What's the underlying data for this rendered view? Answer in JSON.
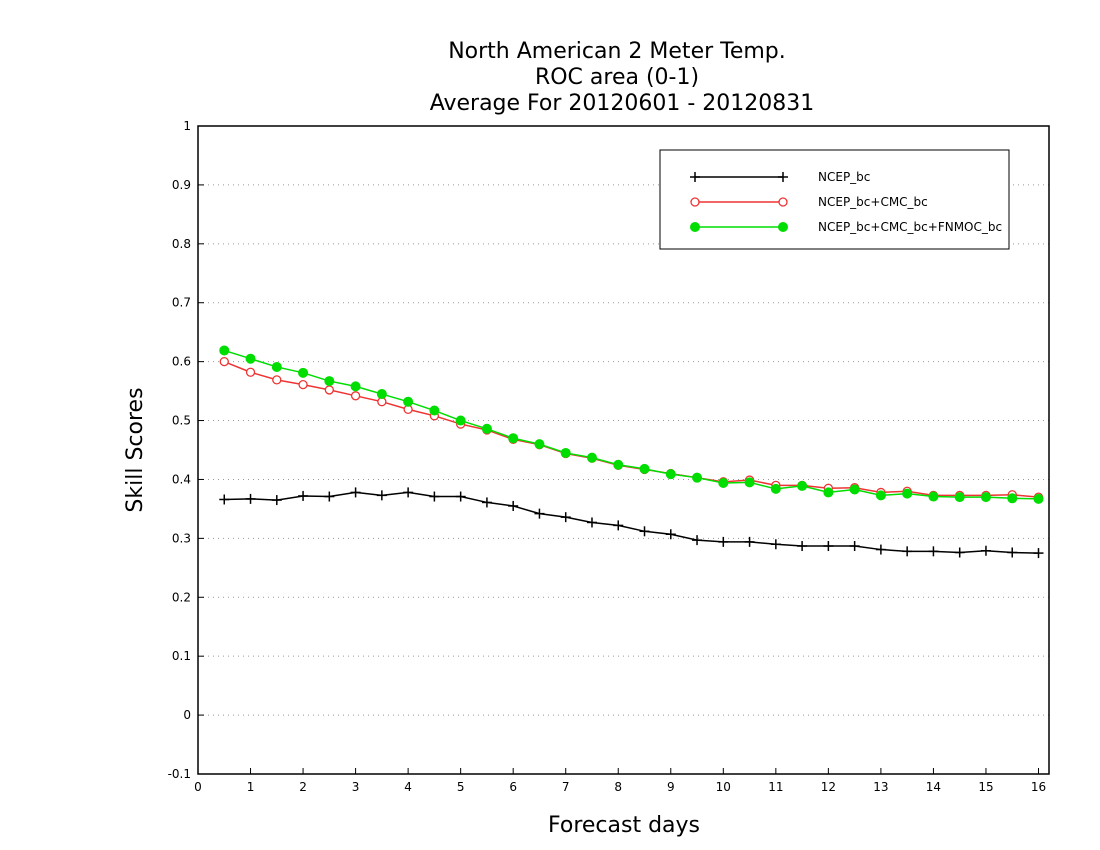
{
  "chart_data": {
    "type": "line",
    "title_lines": [
      "North American 2 Meter Temp.",
      "ROC area (0-1)",
      "Average For 20120601 - 20120831"
    ],
    "xlabel": "Forecast days",
    "ylabel": "Skill Scores",
    "xlim": [
      0,
      16.2
    ],
    "ylim": [
      -0.1,
      1
    ],
    "x_ticks": [
      "0",
      "1",
      "2",
      "3",
      "4",
      "5",
      "6",
      "7",
      "8",
      "9",
      "10",
      "11",
      "12",
      "13",
      "14",
      "15",
      "16"
    ],
    "y_ticks": [
      "-0.1",
      "0",
      "0.1",
      "0.2",
      "0.3",
      "0.4",
      "0.5",
      "0.6",
      "0.7",
      "0.8",
      "0.9",
      "1"
    ],
    "grid": "horizontal dotted",
    "legend_position": "top-right",
    "x": [
      0.5,
      1,
      1.5,
      2,
      2.5,
      3,
      3.5,
      4,
      4.5,
      5,
      5.5,
      6,
      6.5,
      7,
      7.5,
      8,
      8.5,
      9,
      9.5,
      10,
      10.5,
      11,
      11.5,
      12,
      12.5,
      13,
      13.5,
      14,
      14.5,
      15,
      15.5,
      16
    ],
    "series": [
      {
        "name": "NCEP_bc",
        "color": "#000000",
        "marker": "plus",
        "values": [
          0.366,
          0.367,
          0.365,
          0.372,
          0.371,
          0.378,
          0.373,
          0.378,
          0.371,
          0.371,
          0.361,
          0.355,
          0.342,
          0.336,
          0.327,
          0.322,
          0.312,
          0.307,
          0.297,
          0.294,
          0.294,
          0.29,
          0.287,
          0.287,
          0.287,
          0.281,
          0.278,
          0.278,
          0.276,
          0.279,
          0.276,
          0.275
        ]
      },
      {
        "name": "NCEP_bc+CMC_bc",
        "color": "#ee3333",
        "marker": "open-circle",
        "values": [
          0.6,
          0.582,
          0.569,
          0.561,
          0.552,
          0.542,
          0.532,
          0.519,
          0.508,
          0.494,
          0.484,
          0.468,
          0.459,
          0.444,
          0.436,
          0.424,
          0.417,
          0.41,
          0.403,
          0.396,
          0.399,
          0.39,
          0.39,
          0.385,
          0.386,
          0.378,
          0.38,
          0.373,
          0.373,
          0.373,
          0.374,
          0.37
        ]
      },
      {
        "name": "NCEP_bc+CMC_bc+FNMOC_bc",
        "color": "#00dd00",
        "marker": "filled-circle",
        "values": [
          0.619,
          0.605,
          0.591,
          0.581,
          0.567,
          0.558,
          0.545,
          0.532,
          0.517,
          0.5,
          0.486,
          0.47,
          0.46,
          0.445,
          0.437,
          0.425,
          0.418,
          0.409,
          0.403,
          0.394,
          0.395,
          0.384,
          0.389,
          0.378,
          0.383,
          0.373,
          0.376,
          0.371,
          0.37,
          0.37,
          0.368,
          0.367
        ]
      }
    ]
  }
}
